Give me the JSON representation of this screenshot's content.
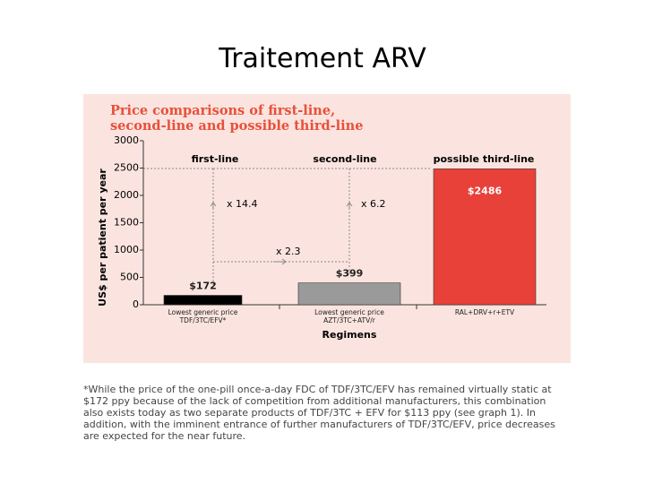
{
  "slide_title": "Traitement ARV",
  "chart_data": {
    "type": "bar",
    "title": "Price comparisons of first-line, second-line and possible third-line",
    "y_label": "US$ per patient per year",
    "x_label": "Regimens",
    "categories": [
      "Lowest generic price TDF/3TC/EFV*",
      "Lowest generic price AZT/3TC+ATV/r",
      "RAL+DRV+r+ETV"
    ],
    "section_labels": [
      "first-line",
      "second-line",
      "possible third-line"
    ],
    "values": [
      172,
      399,
      2486
    ],
    "value_labels": [
      "$172",
      "$399",
      "$2486"
    ],
    "colors": [
      "#000000",
      "#9a9a9a",
      "#e8413a"
    ],
    "annotations": [
      "x 14.4",
      "x 6.2",
      "x 2.3"
    ],
    "ylim": [
      0,
      3000
    ],
    "yticks": [
      0,
      500,
      1000,
      1500,
      2000,
      2500,
      3000
    ]
  },
  "footnote": "*While the price of the one-pill once-a-day FDC of TDF/3TC/EFV has remained virtually static at $172 ppy because of the lack of competition from additional manufacturers, this combination also exists today as two separate products of TDF/3TC + EFV for $113 ppy (see graph 1). In addition, with the imminent entrance of further manufacturers of TDF/3TC/EFV, price decreases are expected for the near future."
}
